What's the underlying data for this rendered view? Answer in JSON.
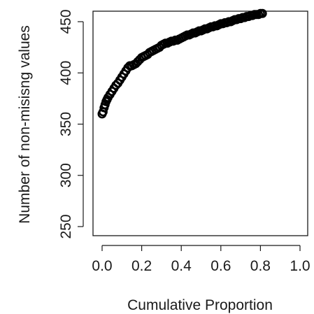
{
  "chart_data": {
    "type": "scatter",
    "title": "",
    "xlabel": "Cumulative Proportion",
    "ylabel": "Number of non-misisng values",
    "xlim": [
      0.0,
      1.0
    ],
    "ylim": [
      245,
      458
    ],
    "x_ticks": [
      "0.0",
      "0.2",
      "0.4",
      "0.6",
      "0.8",
      "1.0"
    ],
    "y_ticks": [
      "250",
      "300",
      "350",
      "400",
      "450"
    ],
    "grid": false,
    "marker": "open-circle",
    "series": [
      {
        "x": [
          0.0,
          0.005,
          0.01,
          0.015,
          0.02,
          0.025,
          0.03,
          0.04,
          0.05,
          0.06,
          0.07,
          0.08,
          0.09,
          0.1,
          0.11,
          0.12,
          0.13,
          0.14,
          0.15,
          0.16,
          0.17,
          0.18,
          0.19,
          0.2,
          0.21,
          0.22,
          0.23,
          0.24,
          0.25,
          0.26,
          0.27,
          0.28,
          0.29,
          0.3,
          0.31,
          0.32,
          0.33,
          0.34,
          0.35,
          0.36,
          0.37,
          0.38,
          0.39,
          0.4,
          0.41,
          0.42,
          0.43,
          0.44,
          0.45,
          0.46,
          0.47,
          0.48,
          0.49,
          0.5,
          0.51,
          0.52,
          0.53,
          0.54,
          0.55,
          0.56,
          0.57,
          0.58,
          0.59,
          0.6,
          0.61,
          0.62,
          0.63,
          0.64,
          0.65,
          0.66,
          0.67,
          0.68,
          0.69,
          0.7,
          0.71,
          0.72,
          0.73,
          0.74,
          0.75,
          0.76,
          0.77,
          0.78,
          0.79,
          0.8,
          0.81
        ],
        "y": [
          360,
          362,
          366,
          369,
          372,
          374,
          376,
          379,
          382,
          385,
          388,
          390,
          393,
          396,
          399,
          402,
          405,
          407,
          407,
          408,
          409,
          411,
          413,
          415,
          416,
          417,
          418,
          420,
          421,
          422,
          423,
          424,
          425,
          427,
          428,
          429,
          429,
          430,
          431,
          431,
          432,
          432,
          433,
          434,
          435,
          436,
          437,
          437,
          438,
          439,
          439,
          440,
          441,
          441,
          442,
          443,
          443,
          444,
          445,
          445,
          446,
          446,
          447,
          448,
          448,
          449,
          449,
          450,
          450,
          451,
          452,
          452,
          453,
          453,
          454,
          454,
          455,
          455,
          456,
          456,
          457,
          457,
          457,
          458,
          458
        ]
      }
    ]
  }
}
